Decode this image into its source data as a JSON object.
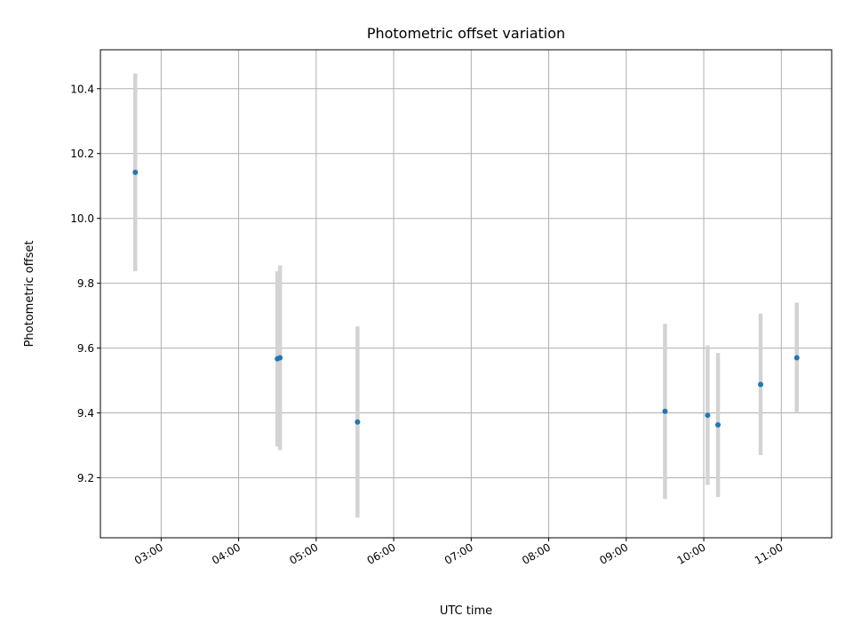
{
  "chart_data": {
    "type": "scatter",
    "title": "Photometric offset variation",
    "xlabel": "UTC time",
    "ylabel": "Photometric offset",
    "x_ticks": [
      "03:00",
      "04:00",
      "05:00",
      "06:00",
      "07:00",
      "08:00",
      "09:00",
      "10:00",
      "11:00"
    ],
    "y_ticks": [
      "9.2",
      "9.4",
      "9.6",
      "9.8",
      "10.0",
      "10.2",
      "10.4"
    ],
    "xlim": [
      "02:13",
      "11:39"
    ],
    "ylim": [
      9.015,
      10.52
    ],
    "grid": true,
    "colors": {
      "point": "#1f77b4",
      "errorbar": "#d3d3d3",
      "grid": "#b0b0b0"
    },
    "points": [
      {
        "x": "02:40",
        "y": 10.142,
        "err": 0.305
      },
      {
        "x": "04:30",
        "y": 9.567,
        "err": 0.27
      },
      {
        "x": "04:32",
        "y": 9.57,
        "err": 0.285
      },
      {
        "x": "05:32",
        "y": 9.372,
        "err": 0.295
      },
      {
        "x": "09:30",
        "y": 9.405,
        "err": 0.27
      },
      {
        "x": "10:03",
        "y": 9.393,
        "err": 0.215
      },
      {
        "x": "10:11",
        "y": 9.363,
        "err": 0.222
      },
      {
        "x": "10:44",
        "y": 9.488,
        "err": 0.218
      },
      {
        "x": "11:12",
        "y": 9.57,
        "err": 0.17
      }
    ]
  }
}
